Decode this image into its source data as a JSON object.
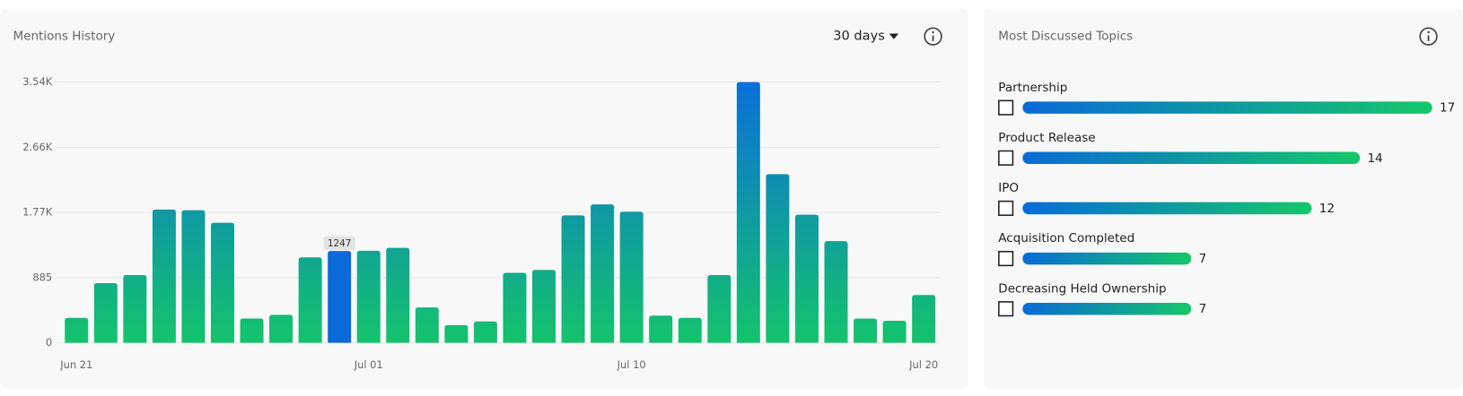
{
  "chart_data": {
    "type": "bar",
    "title": "Mentions History",
    "categories": [
      "Jun 21",
      null,
      null,
      null,
      null,
      null,
      null,
      null,
      null,
      null,
      "Jul 01",
      null,
      null,
      null,
      null,
      null,
      null,
      null,
      null,
      "Jul 10",
      null,
      null,
      null,
      null,
      null,
      null,
      null,
      null,
      null,
      "Jul 20"
    ],
    "values": [
      340,
      810,
      920,
      1810,
      1800,
      1630,
      330,
      380,
      1160,
      1247,
      1250,
      1290,
      480,
      240,
      290,
      950,
      990,
      1730,
      1880,
      1780,
      370,
      340,
      920,
      3540,
      2290,
      1740,
      1380,
      330,
      300,
      650
    ],
    "ylim": [
      0,
      3540
    ],
    "yticks": [
      0,
      885,
      {
        "value": 1770,
        "label": "1.77K"
      },
      {
        "value": 2655,
        "label": "2.66K"
      },
      {
        "value": 3540,
        "label": "3.54K"
      }
    ],
    "grid": true,
    "gradient": [
      "#0b6fd9",
      "#14c36c"
    ],
    "highlight_index": 9,
    "highlight_color": "#0a6ad8"
  },
  "controls": {
    "period": "30 days"
  },
  "topics_panel": {
    "title": "Most Discussed Topics",
    "colors": [
      "#0a6ad8",
      "#15c76a"
    ],
    "topics": [
      {
        "name": "Partnership",
        "count": 17
      },
      {
        "name": "Product Release",
        "count": 14
      },
      {
        "name": "IPO",
        "count": 12
      },
      {
        "name": "Acquisition Completed",
        "count": 7
      },
      {
        "name": "Decreasing Held Ownership",
        "count": 7
      }
    ]
  }
}
